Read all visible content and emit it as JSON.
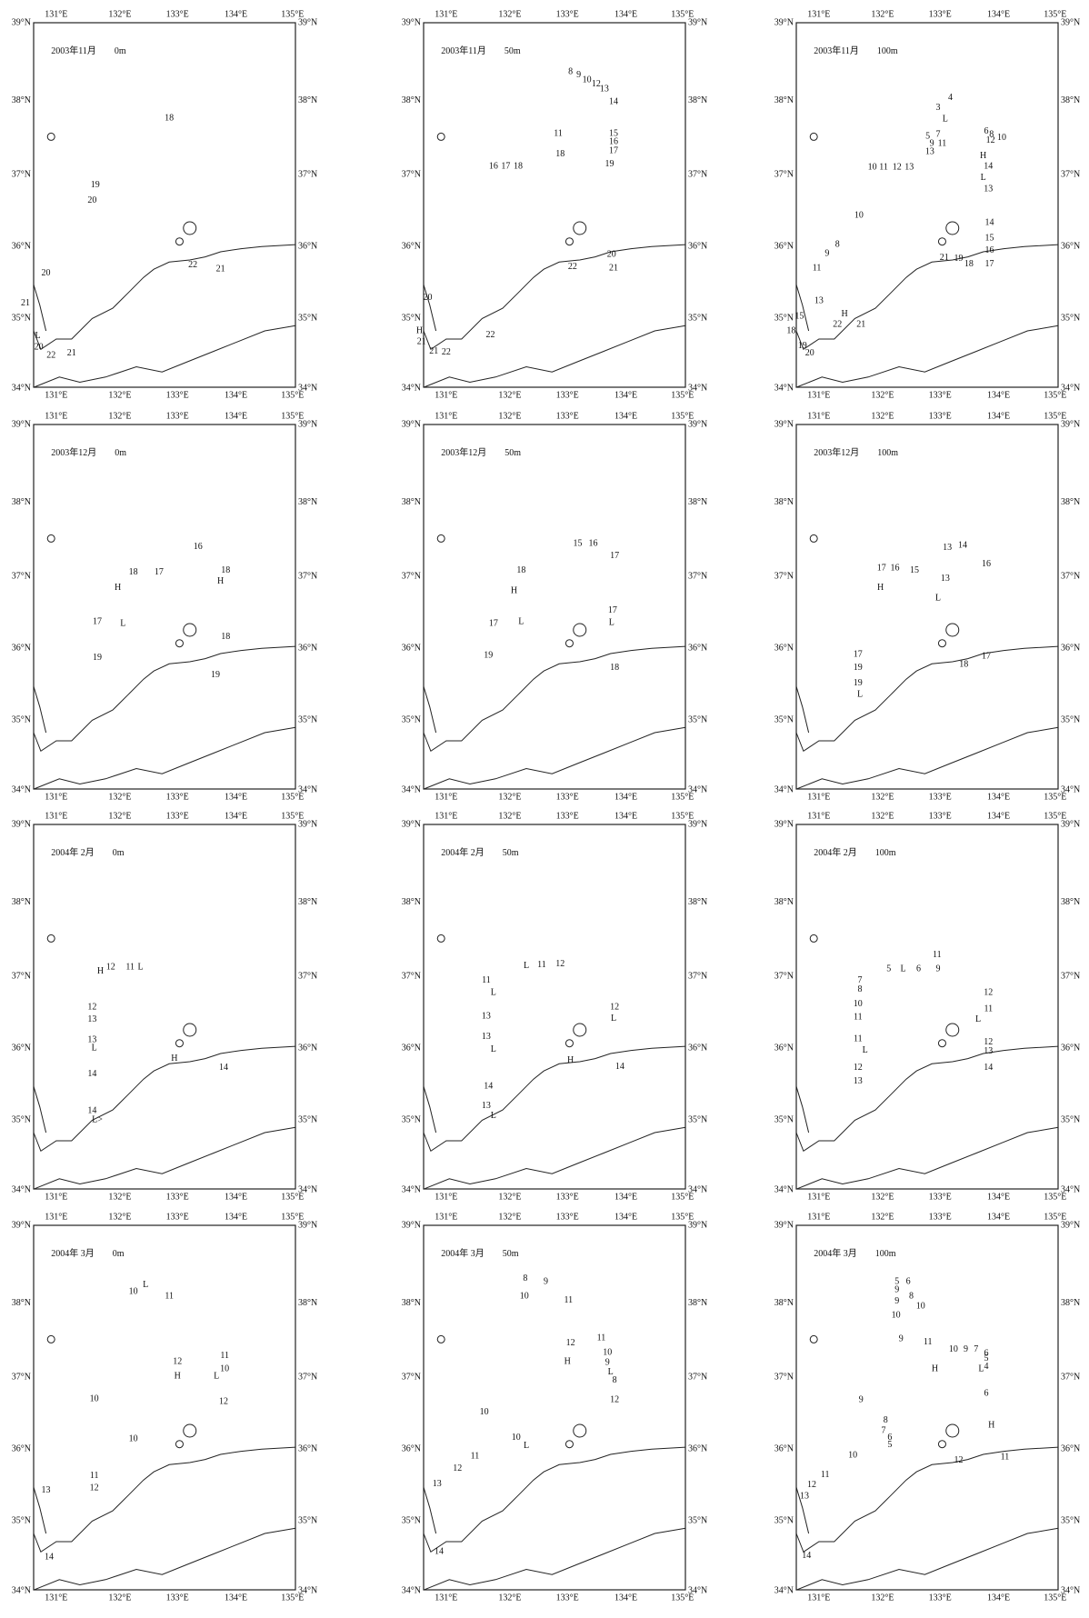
{
  "lon_labels": [
    "131°E",
    "132°E",
    "133°E",
    "134°E",
    "135°E"
  ],
  "lat_labels": [
    "39°N",
    "38°N",
    "37°N",
    "36°N",
    "35°N",
    "34°N"
  ],
  "panels": [
    {
      "title": "2003年11月　　0m",
      "labels": [
        "18",
        "19",
        "20",
        "20",
        "21",
        "22",
        "21",
        "L",
        "20",
        "22",
        "21"
      ]
    },
    {
      "title": "2003年11月　　50m",
      "labels": [
        "8",
        "9",
        "10",
        "12",
        "13",
        "14",
        "11",
        "15",
        "16",
        "17",
        "18",
        "19",
        "16",
        "17",
        "18",
        "20",
        "21",
        "22",
        "20",
        "H",
        "21",
        "21",
        "22",
        "22"
      ]
    },
    {
      "title": "2003年11月　　100m",
      "labels": [
        "4",
        "3",
        "L",
        "5",
        "7",
        "9",
        "11",
        "13",
        "6",
        "8",
        "12",
        "10",
        "H",
        "14",
        "L",
        "13",
        "10",
        "11",
        "12",
        "13",
        "10",
        "8",
        "9",
        "11",
        "14",
        "15",
        "16",
        "17",
        "21",
        "19",
        "18",
        "13",
        "H",
        "15",
        "18",
        "22",
        "21",
        "19",
        "20"
      ]
    },
    {
      "title": "2003年12月　　0m",
      "labels": [
        "16",
        "18",
        "17",
        "18",
        "H",
        "H",
        "17",
        "L",
        "18",
        "19",
        "19"
      ]
    },
    {
      "title": "2003年12月　　50m",
      "labels": [
        "15",
        "16",
        "17",
        "18",
        "H",
        "17",
        "L",
        "17",
        "L",
        "19",
        "18"
      ]
    },
    {
      "title": "2003年12月　　100m",
      "labels": [
        "13",
        "14",
        "16",
        "17",
        "16",
        "15",
        "13",
        "H",
        "L",
        "17",
        "17",
        "19",
        "18",
        "19",
        "L"
      ]
    },
    {
      "title": "2004年 2月　　0m",
      "labels": [
        "H",
        "12",
        "11",
        "L",
        "12",
        "13",
        "13",
        "L",
        "H",
        "14",
        "14",
        "14",
        "L>"
      ]
    },
    {
      "title": "2004年 2月　　50m",
      "labels": [
        "L",
        "11",
        "12",
        "11",
        "L",
        "13",
        "12",
        "L",
        "13",
        "L",
        "H",
        "14",
        "14",
        "13",
        "L"
      ]
    },
    {
      "title": "2004年 2月　　100m",
      "labels": [
        "11",
        "5",
        "L",
        "6",
        "9",
        "7",
        "8",
        "10",
        "11",
        "12",
        "11",
        "L",
        "11",
        "L",
        "12",
        "13",
        "12",
        "14",
        "13"
      ]
    },
    {
      "title": "2004年 3月　　0m",
      "labels": [
        "10",
        "L",
        "11",
        "12",
        "H",
        "11",
        "10",
        "L",
        "10",
        "12",
        "10",
        "11",
        "12",
        "13",
        "14"
      ]
    },
    {
      "title": "2004年 3月　　50m",
      "labels": [
        "8",
        "9",
        "10",
        "11",
        "12",
        "H",
        "11",
        "10",
        "9",
        "L",
        "8",
        "12",
        "10",
        "10",
        "L",
        "11",
        "12",
        "13",
        "14"
      ]
    },
    {
      "title": "2004年 3月　　100m",
      "labels": [
        "5",
        "6",
        "9",
        "8",
        "9",
        "10",
        "10",
        "9",
        "11",
        "10",
        "9",
        "7",
        "6",
        "5",
        "4",
        "H",
        "L",
        "6",
        "9",
        "H",
        "8",
        "7",
        "6",
        "5",
        "10",
        "12",
        "11",
        "11",
        "12",
        "13",
        "14"
      ]
    }
  ]
}
